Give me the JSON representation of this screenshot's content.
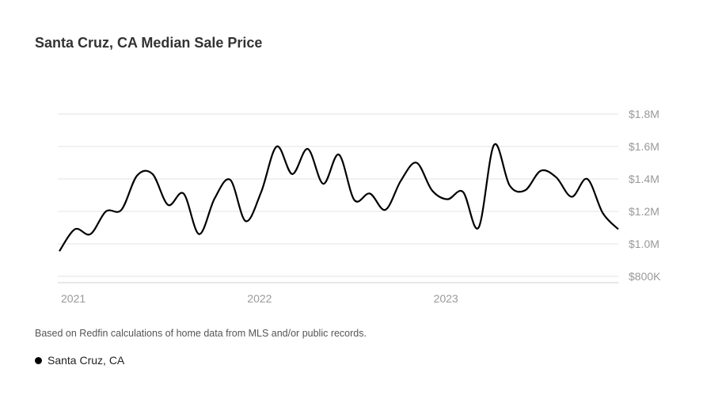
{
  "title": "Santa Cruz, CA Median Sale Price",
  "footnote": "Based on Redfin calculations of home data from MLS and/or public records.",
  "legend": [
    {
      "label": "Santa Cruz, CA",
      "color": "#000000"
    }
  ],
  "chart_data": {
    "type": "line",
    "title": "Santa Cruz, CA Median Sale Price",
    "xlabel": "",
    "ylabel": "",
    "ylim": [
      800000,
      1800000
    ],
    "y_ticks": [
      {
        "value": 1800000,
        "label": "$1.8M"
      },
      {
        "value": 1600000,
        "label": "$1.6M"
      },
      {
        "value": 1400000,
        "label": "$1.4M"
      },
      {
        "value": 1200000,
        "label": "$1.2M"
      },
      {
        "value": 1000000,
        "label": "$1.0M"
      },
      {
        "value": 800000,
        "label": "$800K"
      }
    ],
    "x_ticks": [
      {
        "index": 0,
        "label": "2021"
      },
      {
        "index": 12,
        "label": "2022"
      },
      {
        "index": 24,
        "label": "2023"
      }
    ],
    "grid": true,
    "series": [
      {
        "name": "Santa Cruz, CA",
        "color": "#000000",
        "x": [
          "2021-01",
          "2021-02",
          "2021-03",
          "2021-04",
          "2021-05",
          "2021-06",
          "2021-07",
          "2021-08",
          "2021-09",
          "2021-10",
          "2021-11",
          "2021-12",
          "2022-01",
          "2022-02",
          "2022-03",
          "2022-04",
          "2022-05",
          "2022-06",
          "2022-07",
          "2022-08",
          "2022-09",
          "2022-10",
          "2022-11",
          "2022-12",
          "2023-01",
          "2023-02",
          "2023-03",
          "2023-04",
          "2023-05",
          "2023-06",
          "2023-07",
          "2023-08",
          "2023-09",
          "2023-10",
          "2023-11",
          "2023-12",
          "2024-01"
        ],
        "values": [
          955000,
          1090000,
          1060000,
          1200000,
          1210000,
          1420000,
          1430000,
          1240000,
          1310000,
          1060000,
          1280000,
          1395000,
          1140000,
          1320000,
          1600000,
          1430000,
          1585000,
          1370000,
          1550000,
          1270000,
          1310000,
          1210000,
          1390000,
          1500000,
          1330000,
          1275000,
          1320000,
          1100000,
          1610000,
          1360000,
          1330000,
          1450000,
          1410000,
          1290000,
          1400000,
          1190000,
          1090000
        ]
      }
    ]
  }
}
